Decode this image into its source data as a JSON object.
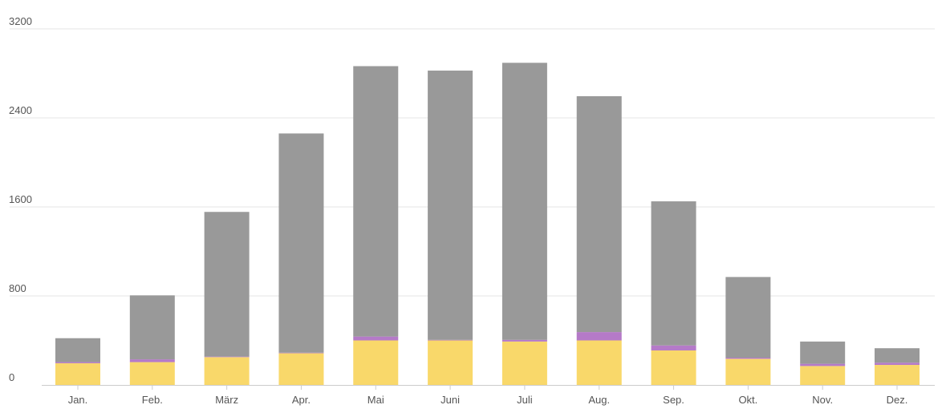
{
  "chart_data": {
    "type": "bar",
    "stacked": true,
    "categories": [
      "Jan.",
      "Feb.",
      "März",
      "Apr.",
      "Mai",
      "Juni",
      "Juli",
      "Aug.",
      "Sep.",
      "Okt.",
      "Nov.",
      "Dez."
    ],
    "series": [
      {
        "color": "#f9d86a",
        "values": [
          195,
          205,
          250,
          285,
          400,
          400,
          390,
          400,
          310,
          235,
          170,
          180
        ]
      },
      {
        "color": "#b57ac8",
        "values": [
          10,
          25,
          5,
          5,
          35,
          5,
          15,
          75,
          45,
          10,
          20,
          20
        ]
      },
      {
        "color": "#999999",
        "values": [
          215,
          575,
          1300,
          1970,
          2430,
          2420,
          2490,
          2120,
          1295,
          725,
          200,
          130
        ]
      }
    ],
    "yticks": [
      0,
      800,
      1600,
      2400,
      3200
    ],
    "ylim": [
      0,
      3200
    ],
    "grid": true,
    "title": "",
    "xlabel": "",
    "ylabel": ""
  }
}
